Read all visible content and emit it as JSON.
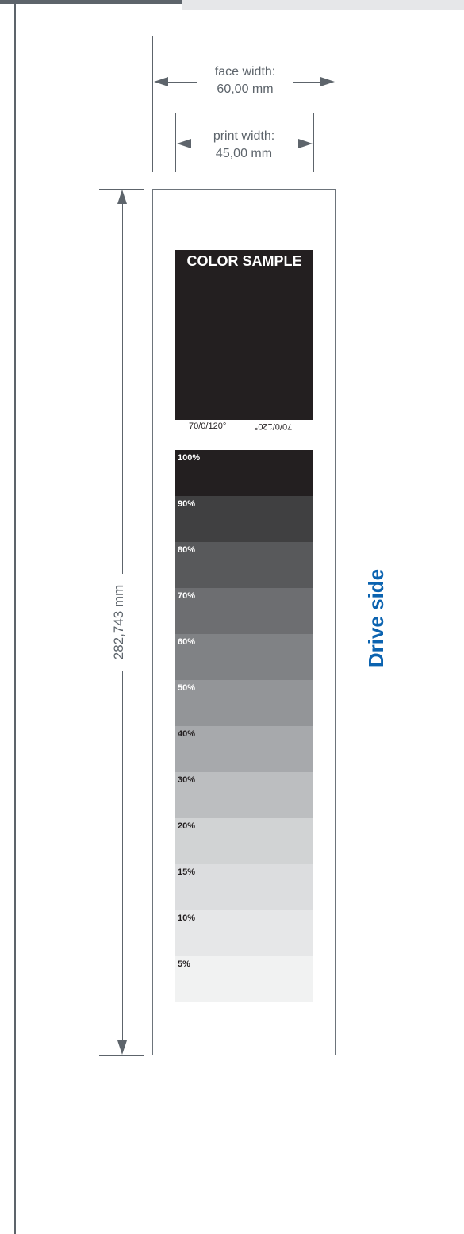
{
  "face_width": {
    "line1": "face width:",
    "line2": "60,00 mm"
  },
  "print_width": {
    "line1": "print width:",
    "line2": "45,00 mm"
  },
  "height_dimension": "282,743 mm",
  "color_sample": {
    "title": "COLOR SAMPLE",
    "code": "70/0/120°",
    "code_mirrored": "70/0/120°",
    "fill_color": "#231f20"
  },
  "tint_scale": [
    {
      "label": "100%",
      "color": "#231f20",
      "text_color": "#ffffff"
    },
    {
      "label": "90%",
      "color": "#404041",
      "text_color": "#ffffff"
    },
    {
      "label": "80%",
      "color": "#58595b",
      "text_color": "#ffffff"
    },
    {
      "label": "70%",
      "color": "#6d6e71",
      "text_color": "#ffffff"
    },
    {
      "label": "60%",
      "color": "#808285",
      "text_color": "#ffffff"
    },
    {
      "label": "50%",
      "color": "#939598",
      "text_color": "#ffffff"
    },
    {
      "label": "40%",
      "color": "#a7a9ac",
      "text_color": "#231f20"
    },
    {
      "label": "30%",
      "color": "#bcbec0",
      "text_color": "#231f20"
    },
    {
      "label": "20%",
      "color": "#d1d3d4",
      "text_color": "#231f20"
    },
    {
      "label": "15%",
      "color": "#dcdddf",
      "text_color": "#231f20"
    },
    {
      "label": "10%",
      "color": "#e6e7e8",
      "text_color": "#231f20"
    },
    {
      "label": "5%",
      "color": "#f1f2f2",
      "text_color": "#231f20"
    }
  ],
  "side_label": "Drive side",
  "colors": {
    "dimension": "#5d646b",
    "accent": "#0b63b0"
  }
}
